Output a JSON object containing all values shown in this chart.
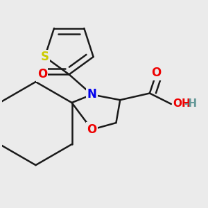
{
  "background_color": "#ebebeb",
  "bond_color": "#1a1a1a",
  "bond_width": 1.8,
  "atom_colors": {
    "S": "#cccc00",
    "N": "#0000ee",
    "O": "#ee0000",
    "C": "#1a1a1a"
  },
  "figsize": [
    3.0,
    3.0
  ],
  "dpi": 100
}
